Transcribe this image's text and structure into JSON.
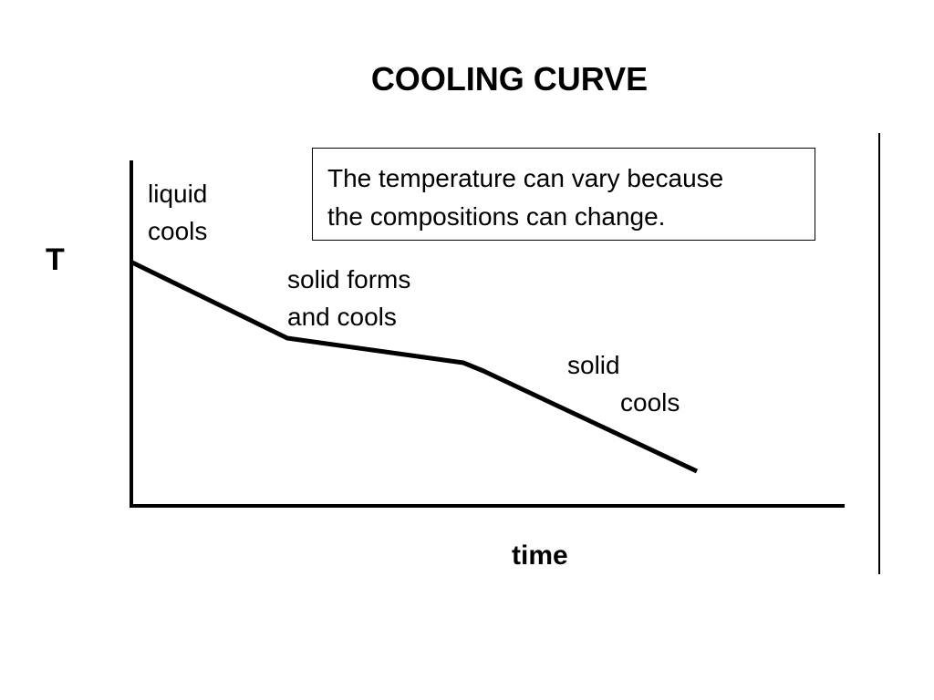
{
  "slide": {
    "title": "COOLING CURVE"
  },
  "axes": {
    "y_label": "T",
    "x_label": "time"
  },
  "regions": {
    "liquid": [
      "liquid",
      "cools"
    ],
    "solid_forms": [
      "solid forms",
      "and cools"
    ],
    "solid": [
      "solid",
      "cools"
    ]
  },
  "note": {
    "lines": [
      "The temperature can vary because",
      "the compositions can change."
    ]
  },
  "colors": {
    "ink": "#000000",
    "background": "#ffffff"
  }
}
